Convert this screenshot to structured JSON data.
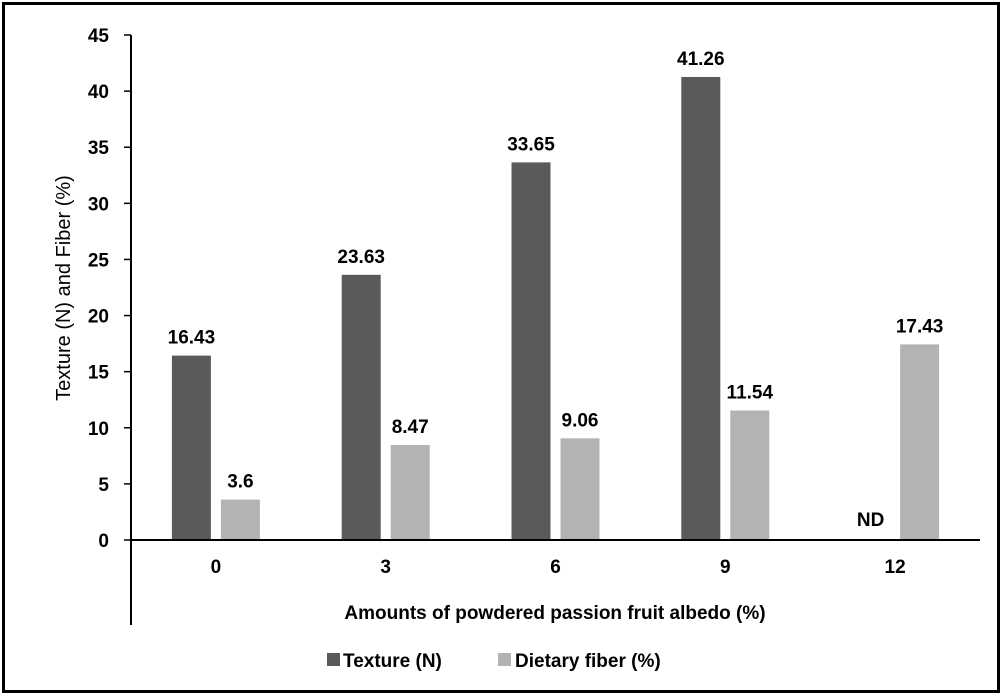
{
  "chart_data": {
    "type": "bar",
    "categories": [
      "0",
      "3",
      "6",
      "9",
      "12"
    ],
    "series": [
      {
        "name": "Texture (N)",
        "values": [
          16.43,
          23.63,
          33.65,
          41.26,
          null
        ],
        "color": "#5a5a5a"
      },
      {
        "name": "Dietary fiber (%)",
        "values": [
          3.6,
          8.47,
          9.06,
          11.54,
          17.43
        ],
        "color": "#b3b3b3"
      }
    ],
    "data_labels": [
      [
        "16.43",
        "23.63",
        "33.65",
        "41.26",
        "ND"
      ],
      [
        "3.6",
        "8.47",
        "9.06",
        "11.54",
        "17.43"
      ]
    ],
    "xlabel": "Amounts of powdered passion fruit albedo (%)",
    "ylabel": "Texture (N) and Fiber (%)",
    "ylim": [
      0,
      45
    ],
    "yticks": [
      "0",
      "5",
      "10",
      "15",
      "20",
      "25",
      "30",
      "35",
      "40",
      "45"
    ],
    "grid": false,
    "legend_position": "bottom"
  }
}
